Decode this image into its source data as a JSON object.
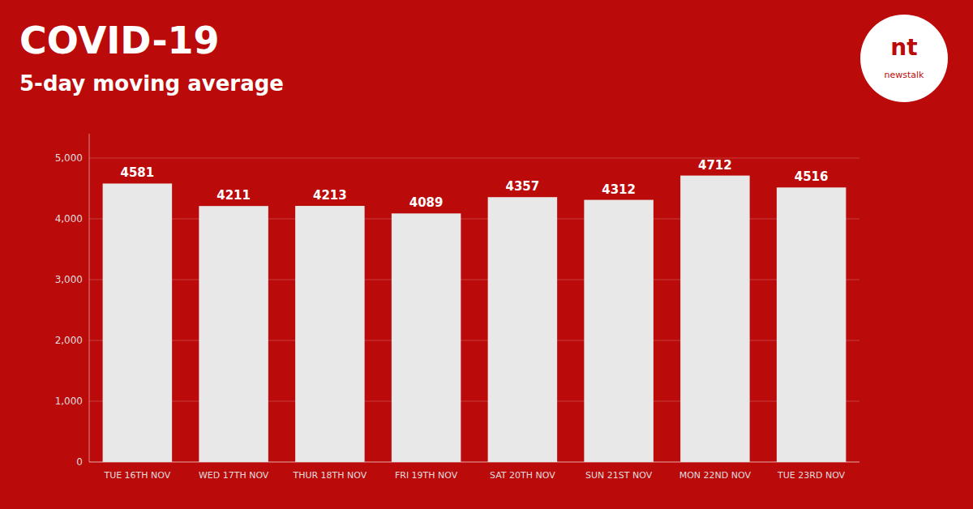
{
  "chart_data": {
    "type": "bar",
    "title": "COVID-19",
    "subtitle": "5-day moving average",
    "annotations": [
      "nt",
      "newstalk"
    ],
    "categories": [
      "TUE 16TH NOV",
      "WED 17TH NOV",
      "THUR 18TH NOV",
      "FRI 19TH NOV",
      "SAT 20TH NOV",
      "SUN 21ST NOV",
      "MON 22ND NOV",
      "TUE 23RD NOV"
    ],
    "values": [
      4581,
      4211,
      4213,
      4089,
      4357,
      4312,
      4712,
      4516
    ],
    "color": "#e8e8e8",
    "ylim": [
      0,
      5400
    ],
    "yticks": [
      0,
      {
        "value": 1000,
        "label": "1,000"
      },
      {
        "value": 2000,
        "label": "2,000"
      },
      {
        "value": 3000,
        "label": "3,000"
      },
      {
        "value": 4000,
        "label": "4,000"
      },
      {
        "value": 5000,
        "label": "5,000"
      }
    ],
    "grid": true,
    "data_labels": true
  }
}
